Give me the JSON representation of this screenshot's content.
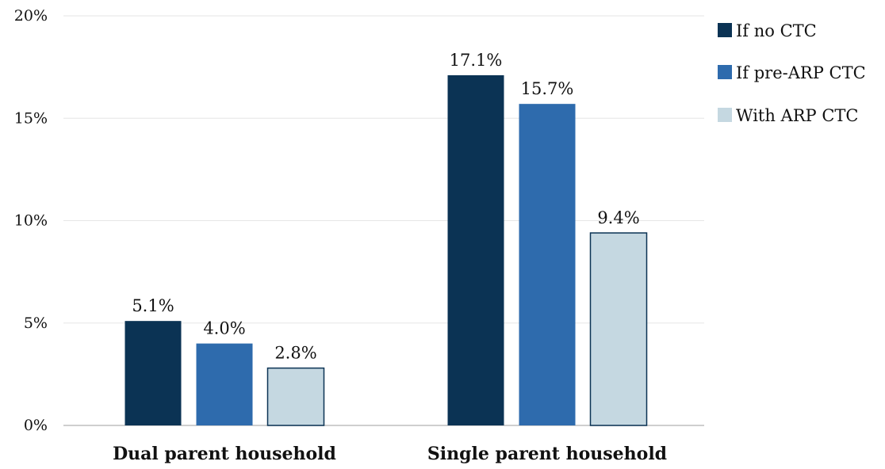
{
  "chart_data": {
    "type": "bar",
    "categories": [
      "Dual parent household",
      "Single parent household"
    ],
    "series": [
      {
        "name": "If no CTC",
        "values": [
          5.1,
          17.1
        ],
        "labels": [
          "5.1%",
          "17.1%"
        ],
        "color": "#0b3354"
      },
      {
        "name": "If pre-ARP CTC",
        "values": [
          4.0,
          15.7
        ],
        "labels": [
          "4.0%",
          "15.7%"
        ],
        "color": "#2e6bad"
      },
      {
        "name": "With ARP CTC",
        "values": [
          2.8,
          9.4
        ],
        "labels": [
          "2.8%",
          "9.4%"
        ],
        "color": "#c5d8e1"
      }
    ],
    "ylim": [
      0,
      20
    ],
    "yticks": [
      0,
      5,
      10,
      15,
      20
    ],
    "ytick_labels": [
      "0%",
      "5%",
      "10%",
      "15%",
      "20%"
    ],
    "title": "",
    "xlabel": "",
    "ylabel": "",
    "grid": true,
    "legend_position": "right"
  }
}
